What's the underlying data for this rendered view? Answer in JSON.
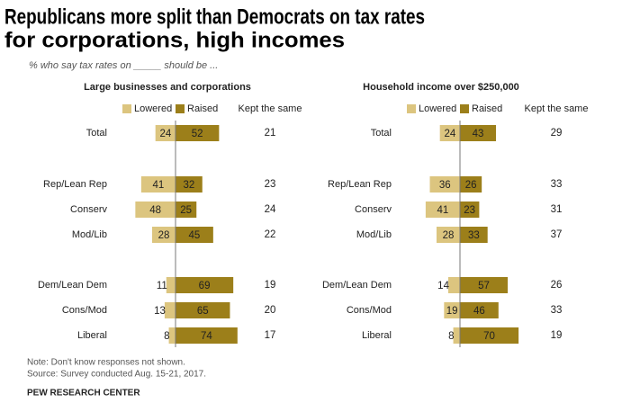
{
  "title": [
    "Republicans more split than Democrats on tax rates",
    "for corporations, high incomes"
  ],
  "subtitle": "% who say tax rates on _____ should be ...",
  "note": "Note: Don't know responses not shown.",
  "source": "Source: Survey conducted Aug. 15-21, 2017.",
  "credit": "PEW RESEARCH CENTER",
  "chart_data": [
    {
      "type": "diverging_bar",
      "title": "Large businesses and corporations",
      "categories": [
        "Total",
        "Rep/Lean Rep",
        "Conserv",
        "Mod/Lib",
        "Dem/Lean Dem",
        "Cons/Mod",
        "Liberal"
      ],
      "label_colors": [
        "#222",
        "#222",
        "#888",
        "#888",
        "#222",
        "#888",
        "#888"
      ],
      "series": [
        {
          "name": "Lowered",
          "color": "#dcc57f",
          "values": [
            24,
            41,
            48,
            28,
            11,
            13,
            8
          ]
        },
        {
          "name": "Raised",
          "color": "#9c7f1a",
          "values": [
            52,
            32,
            25,
            45,
            69,
            65,
            74
          ]
        }
      ],
      "kept_the_same": {
        "name": "Kept the same",
        "values": [
          21,
          23,
          24,
          22,
          19,
          20,
          17
        ]
      }
    },
    {
      "type": "diverging_bar",
      "title": "Household income over $250,000",
      "categories": [
        "Total",
        "Rep/Lean Rep",
        "Conserv",
        "Mod/Lib",
        "Dem/Lean Dem",
        "Cons/Mod",
        "Liberal"
      ],
      "label_colors": [
        "#222",
        "#222",
        "#888",
        "#888",
        "#222",
        "#888",
        "#888"
      ],
      "series": [
        {
          "name": "Lowered",
          "color": "#dcc57f",
          "values": [
            24,
            36,
            41,
            28,
            14,
            19,
            8
          ]
        },
        {
          "name": "Raised",
          "color": "#9c7f1a",
          "values": [
            43,
            26,
            23,
            33,
            57,
            46,
            70
          ]
        }
      ],
      "kept_the_same": {
        "name": "Kept the same",
        "values": [
          29,
          33,
          31,
          37,
          26,
          33,
          19
        ]
      }
    }
  ]
}
